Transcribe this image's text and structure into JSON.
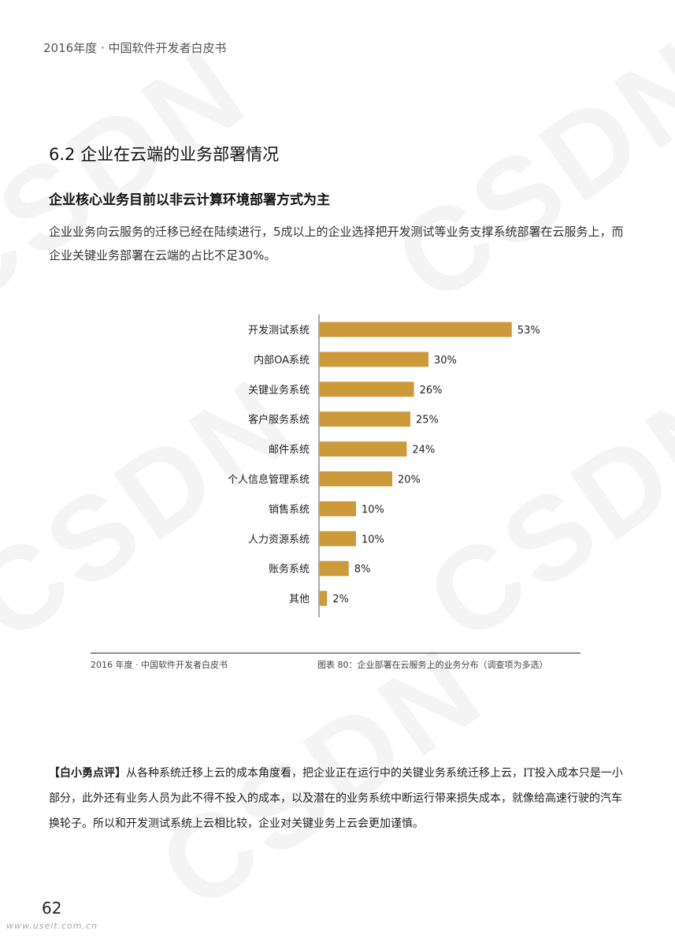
{
  "header": {
    "running_title": "2016年度 · 中国软件开发者白皮书"
  },
  "section": {
    "title": "6.2 企业在云端的业务部署情况",
    "subtitle": "企业核心业务目前以非云计算环境部署方式为主",
    "intro": "企业业务向云服务的迁移已经在陆续进行，5成以上的企业选择把开发测试等业务支撑系统部署在云服务上，而企业关键业务部署在云端的占比不足30%。"
  },
  "chart_data": {
    "type": "bar",
    "orientation": "horizontal",
    "categories": [
      "开发测试系统",
      "内部OA系统",
      "关键业务系统",
      "客户服务系统",
      "邮件系统",
      "个人信息管理系统",
      "销售系统",
      "人力资源系统",
      "账务系统",
      "其他"
    ],
    "values": [
      53,
      30,
      26,
      25,
      24,
      20,
      10,
      10,
      8,
      2
    ],
    "value_labels": [
      "53%",
      "30%",
      "26%",
      "25%",
      "24%",
      "20%",
      "10%",
      "10%",
      "8%",
      "2%"
    ],
    "unit": "%",
    "color": "#cc9a38",
    "grid": false
  },
  "chart_footer": {
    "left": "2016 年度 · 中国软件开发者白皮书",
    "right": "图表 80：企业部署在云服务上的业务分布（调查项为多选）"
  },
  "comment": {
    "lead": "【白小勇点评】",
    "text": "从各种系统迁移上云的成本角度看，把企业正在运行中的关键业务系统迁移上云，IT投入成本只是一小部分，此外还有业务人员为此不得不投入的成本，以及潜在的业务系统中断运行带来损失成本，就像给高速行驶的汽车换轮子。所以和开发测试系统上云相比较，企业对关键业务上云会更加谨慎。"
  },
  "watermark": "CSDN",
  "footer": {
    "page_number": "62",
    "site": "www.useit.com.cn"
  }
}
